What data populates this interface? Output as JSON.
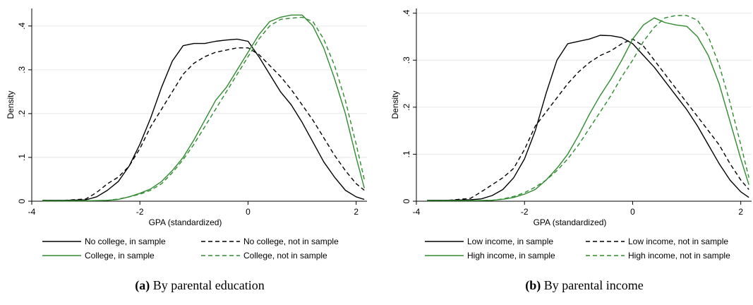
{
  "chart_data": [
    {
      "type": "line",
      "caption_label": "(a)",
      "caption_text": "By parental education",
      "xlabel": "GPA (standardized)",
      "ylabel": "Density",
      "xlim": [
        -4,
        2.2
      ],
      "ylim": [
        0,
        0.44
      ],
      "xticks": [
        -4,
        -2,
        0,
        2
      ],
      "yticks": [
        0,
        0.1,
        0.2,
        0.3,
        0.4
      ],
      "ytick_labels": [
        "0",
        ".1",
        ".2",
        ".3",
        ".4"
      ],
      "grid": true,
      "legend_position": "bottom",
      "series": [
        {
          "name": "No college, in sample",
          "color": "#000000",
          "dash": "solid",
          "x": [
            -3.8,
            -3.4,
            -3.0,
            -2.8,
            -2.6,
            -2.4,
            -2.2,
            -2.0,
            -1.8,
            -1.6,
            -1.4,
            -1.2,
            -1.0,
            -0.8,
            -0.6,
            -0.4,
            -0.2,
            0.0,
            0.2,
            0.4,
            0.6,
            0.8,
            1.0,
            1.2,
            1.4,
            1.6,
            1.8,
            2.0,
            2.15
          ],
          "y": [
            0.002,
            0.002,
            0.003,
            0.01,
            0.025,
            0.045,
            0.08,
            0.13,
            0.19,
            0.26,
            0.32,
            0.355,
            0.36,
            0.36,
            0.365,
            0.368,
            0.37,
            0.365,
            0.33,
            0.29,
            0.25,
            0.22,
            0.18,
            0.135,
            0.09,
            0.055,
            0.025,
            0.01,
            0.004
          ]
        },
        {
          "name": "No college, not in sample",
          "color": "#000000",
          "dash": "dashed",
          "x": [
            -3.8,
            -3.4,
            -3.0,
            -2.8,
            -2.6,
            -2.4,
            -2.2,
            -2.0,
            -1.8,
            -1.6,
            -1.4,
            -1.2,
            -1.0,
            -0.8,
            -0.6,
            -0.4,
            -0.2,
            0.0,
            0.2,
            0.4,
            0.6,
            0.8,
            1.0,
            1.2,
            1.4,
            1.6,
            1.8,
            2.0,
            2.15
          ],
          "y": [
            0.002,
            0.002,
            0.005,
            0.02,
            0.04,
            0.055,
            0.08,
            0.12,
            0.17,
            0.21,
            0.25,
            0.29,
            0.315,
            0.33,
            0.34,
            0.345,
            0.35,
            0.35,
            0.335,
            0.31,
            0.285,
            0.255,
            0.22,
            0.185,
            0.145,
            0.105,
            0.07,
            0.04,
            0.025
          ]
        },
        {
          "name": "College, in sample",
          "color": "#2e8b2e",
          "dash": "solid",
          "x": [
            -3.8,
            -3.0,
            -2.6,
            -2.4,
            -2.2,
            -2.0,
            -1.8,
            -1.6,
            -1.4,
            -1.2,
            -1.0,
            -0.8,
            -0.6,
            -0.4,
            -0.2,
            0.0,
            0.2,
            0.4,
            0.6,
            0.8,
            1.0,
            1.2,
            1.4,
            1.6,
            1.8,
            2.0,
            2.15
          ],
          "y": [
            0.001,
            0.001,
            0.002,
            0.004,
            0.01,
            0.018,
            0.028,
            0.045,
            0.07,
            0.1,
            0.14,
            0.185,
            0.23,
            0.26,
            0.3,
            0.34,
            0.38,
            0.41,
            0.42,
            0.425,
            0.425,
            0.4,
            0.35,
            0.28,
            0.2,
            0.1,
            0.03
          ]
        },
        {
          "name": "College, not in sample",
          "color": "#2e8b2e",
          "dash": "dashed",
          "x": [
            -3.8,
            -3.0,
            -2.6,
            -2.4,
            -2.2,
            -2.0,
            -1.8,
            -1.6,
            -1.4,
            -1.2,
            -1.0,
            -0.8,
            -0.6,
            -0.4,
            -0.2,
            0.0,
            0.2,
            0.4,
            0.6,
            0.8,
            1.0,
            1.2,
            1.4,
            1.6,
            1.8,
            2.0,
            2.15
          ],
          "y": [
            0.001,
            0.001,
            0.002,
            0.005,
            0.01,
            0.016,
            0.025,
            0.04,
            0.065,
            0.095,
            0.13,
            0.17,
            0.21,
            0.25,
            0.29,
            0.33,
            0.37,
            0.4,
            0.415,
            0.418,
            0.42,
            0.41,
            0.37,
            0.31,
            0.23,
            0.13,
            0.05
          ]
        }
      ]
    },
    {
      "type": "line",
      "caption_label": "(b)",
      "caption_text": "By parental income",
      "xlabel": "GPA (standardized)",
      "ylabel": "Density",
      "xlim": [
        -4,
        2.2
      ],
      "ylim": [
        0,
        0.41
      ],
      "xticks": [
        -4,
        -2,
        0,
        2
      ],
      "yticks": [
        0,
        0.1,
        0.2,
        0.3,
        0.4
      ],
      "ytick_labels": [
        "0",
        ".1",
        ".2",
        ".3",
        ".4"
      ],
      "grid": true,
      "legend_position": "bottom",
      "series": [
        {
          "name": "Low income, in sample",
          "color": "#000000",
          "dash": "solid",
          "x": [
            -3.8,
            -3.4,
            -3.0,
            -2.8,
            -2.6,
            -2.4,
            -2.2,
            -2.0,
            -1.8,
            -1.6,
            -1.4,
            -1.2,
            -1.0,
            -0.8,
            -0.6,
            -0.4,
            -0.2,
            0.0,
            0.2,
            0.4,
            0.6,
            0.8,
            1.0,
            1.2,
            1.4,
            1.6,
            1.8,
            2.0,
            2.15
          ],
          "y": [
            0.002,
            0.002,
            0.003,
            0.005,
            0.012,
            0.025,
            0.05,
            0.09,
            0.15,
            0.23,
            0.3,
            0.335,
            0.34,
            0.345,
            0.353,
            0.352,
            0.348,
            0.335,
            0.31,
            0.285,
            0.255,
            0.225,
            0.195,
            0.16,
            0.12,
            0.08,
            0.045,
            0.02,
            0.008
          ]
        },
        {
          "name": "Low income, not in sample",
          "color": "#000000",
          "dash": "dashed",
          "x": [
            -3.8,
            -3.4,
            -3.0,
            -2.8,
            -2.6,
            -2.4,
            -2.2,
            -2.0,
            -1.8,
            -1.6,
            -1.4,
            -1.2,
            -1.0,
            -0.8,
            -0.6,
            -0.4,
            -0.2,
            0.0,
            0.2,
            0.4,
            0.6,
            0.8,
            1.0,
            1.2,
            1.4,
            1.6,
            1.8,
            2.0,
            2.15
          ],
          "y": [
            0.002,
            0.002,
            0.006,
            0.02,
            0.035,
            0.05,
            0.07,
            0.11,
            0.16,
            0.19,
            0.22,
            0.25,
            0.275,
            0.295,
            0.31,
            0.32,
            0.335,
            0.345,
            0.33,
            0.3,
            0.27,
            0.24,
            0.21,
            0.18,
            0.15,
            0.12,
            0.08,
            0.045,
            0.025
          ]
        },
        {
          "name": "High income, in sample",
          "color": "#2e8b2e",
          "dash": "solid",
          "x": [
            -3.8,
            -3.0,
            -2.6,
            -2.4,
            -2.2,
            -2.0,
            -1.8,
            -1.6,
            -1.4,
            -1.2,
            -1.0,
            -0.8,
            -0.6,
            -0.4,
            -0.2,
            0.0,
            0.2,
            0.4,
            0.6,
            0.8,
            1.0,
            1.2,
            1.4,
            1.6,
            1.8,
            2.0,
            2.15
          ],
          "y": [
            0.001,
            0.001,
            0.002,
            0.004,
            0.008,
            0.015,
            0.025,
            0.045,
            0.07,
            0.1,
            0.14,
            0.185,
            0.225,
            0.26,
            0.3,
            0.345,
            0.375,
            0.39,
            0.38,
            0.375,
            0.372,
            0.35,
            0.31,
            0.25,
            0.17,
            0.09,
            0.035
          ]
        },
        {
          "name": "High income, not in sample",
          "color": "#2e8b2e",
          "dash": "dashed",
          "x": [
            -3.8,
            -3.0,
            -2.6,
            -2.4,
            -2.2,
            -2.0,
            -1.8,
            -1.6,
            -1.4,
            -1.2,
            -1.0,
            -0.8,
            -0.6,
            -0.4,
            -0.2,
            0.0,
            0.2,
            0.4,
            0.6,
            0.8,
            1.0,
            1.2,
            1.4,
            1.6,
            1.8,
            2.0,
            2.15
          ],
          "y": [
            0.001,
            0.001,
            0.002,
            0.005,
            0.01,
            0.018,
            0.03,
            0.045,
            0.065,
            0.09,
            0.12,
            0.155,
            0.19,
            0.225,
            0.265,
            0.3,
            0.34,
            0.37,
            0.39,
            0.395,
            0.395,
            0.385,
            0.35,
            0.29,
            0.21,
            0.12,
            0.05
          ]
        }
      ]
    }
  ]
}
